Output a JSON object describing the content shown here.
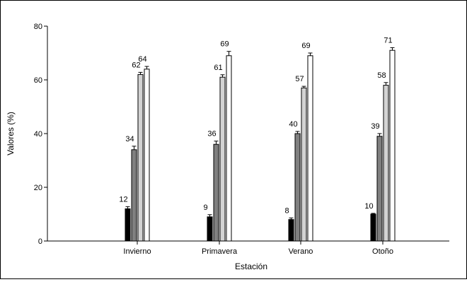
{
  "chart_data": {
    "type": "bar",
    "categories": [
      "Invierno",
      "Primavera",
      "Verano",
      "Otoño"
    ],
    "series": [
      {
        "values": [
          12,
          9,
          8,
          10
        ],
        "errors": [
          0.8,
          0.8,
          0.6,
          0.3
        ],
        "color": "#000000"
      },
      {
        "values": [
          34,
          36,
          40,
          39
        ],
        "errors": [
          1.3,
          1.2,
          0.8,
          1.0
        ],
        "color": "#808080"
      },
      {
        "values": [
          62,
          61,
          57,
          58
        ],
        "errors": [
          0.8,
          0.9,
          0.6,
          1.0
        ],
        "color": "#d3d3d3"
      },
      {
        "values": [
          64,
          69,
          69,
          71
        ],
        "errors": [
          1.0,
          1.6,
          1.0,
          1.0
        ],
        "color": "#ffffff"
      }
    ],
    "data_labels": [
      [
        "12",
        "9",
        "8",
        "10"
      ],
      [
        "34",
        "36",
        "40",
        "39"
      ],
      [
        "62",
        "61",
        "57",
        "58"
      ],
      [
        "64",
        "69",
        "69",
        "71"
      ]
    ],
    "xlabel": "Estación",
    "ylabel": "Valores (%)",
    "ylim": [
      0,
      80
    ],
    "yticks": [
      0,
      20,
      40,
      60,
      80
    ],
    "grid": false,
    "legend": "none"
  }
}
